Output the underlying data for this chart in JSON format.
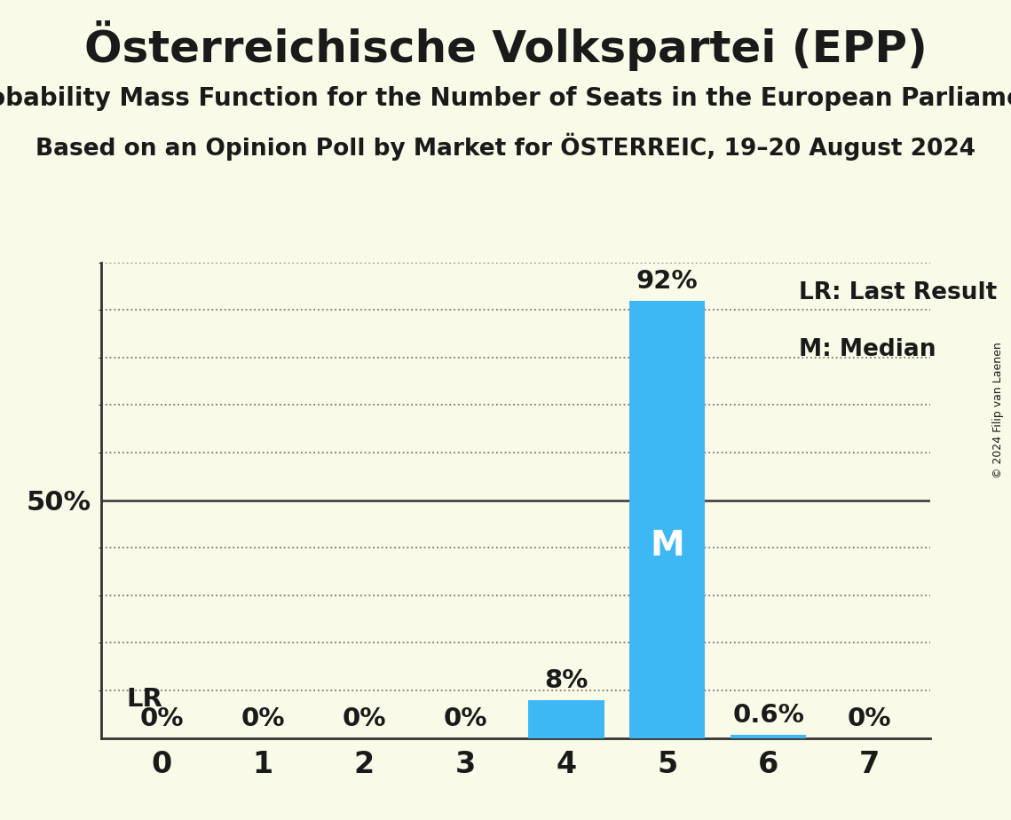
{
  "title": "Österreichische Volkspartei (EPP)",
  "subtitle1": "Probability Mass Function for the Number of Seats in the European Parliament",
  "subtitle2": "Based on an Opinion Poll by Market for ÖSTERREIC, 19–20 August 2024",
  "copyright": "© 2024 Filip van Laenen",
  "seats": [
    0,
    1,
    2,
    3,
    4,
    5,
    6,
    7
  ],
  "probabilities": [
    0.0,
    0.0,
    0.0,
    0.0,
    8.0,
    92.0,
    0.6,
    0.0
  ],
  "median_seat": 5,
  "last_result_seat": 0,
  "bar_color": "#3db8f5",
  "background_color": "#fafae8",
  "text_color": "#1a1a1a",
  "ylim": [
    0,
    100
  ],
  "legend_lr": "LR: Last Result",
  "legend_m": "M: Median",
  "zero_label": "0%"
}
